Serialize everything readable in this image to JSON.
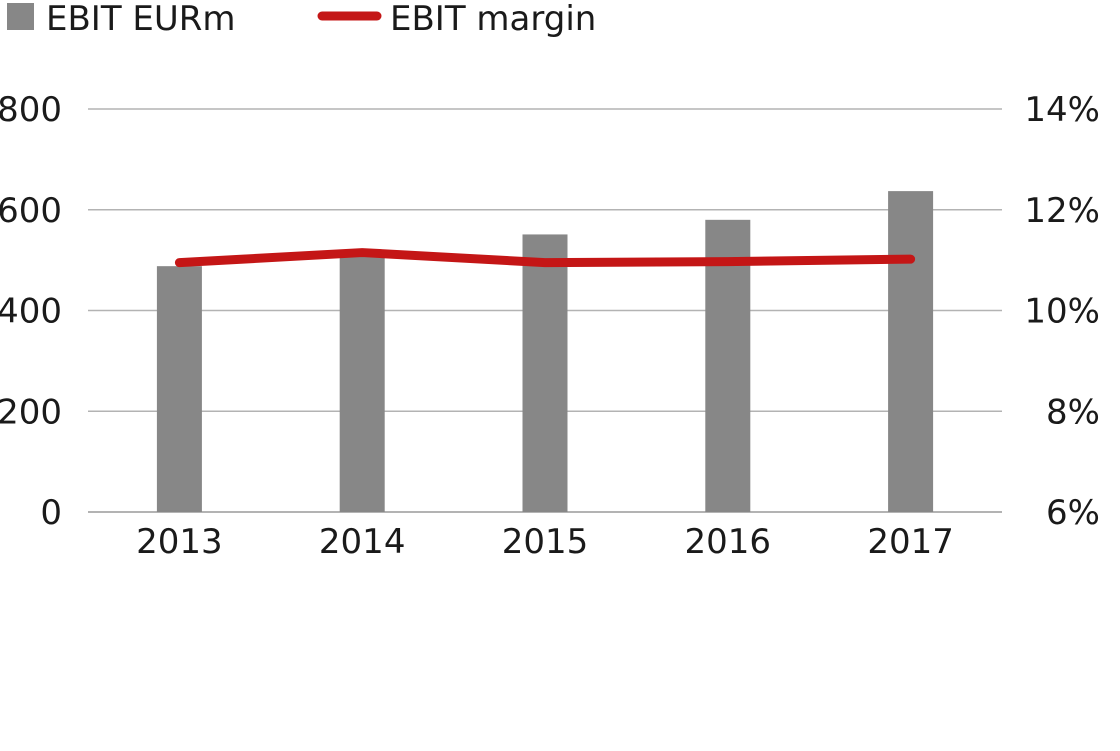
{
  "legend": {
    "bars_label": "EBIT EURm",
    "line_label": "EBIT margin"
  },
  "colors": {
    "bar": "#878787",
    "line": "#c41616",
    "grid": "#b3b3b3"
  },
  "chart_data": {
    "type": "bar",
    "categories": [
      "2013",
      "2014",
      "2015",
      "2016",
      "2017"
    ],
    "series": [
      {
        "name": "EBIT EURm",
        "type": "bar",
        "axis": "left",
        "values": [
          488,
          516,
          551,
          580,
          637
        ]
      },
      {
        "name": "EBIT margin",
        "type": "line",
        "axis": "right",
        "values": [
          10.95,
          11.15,
          10.95,
          10.97,
          11.02
        ]
      }
    ],
    "y_left": {
      "ylim": [
        0,
        800
      ],
      "ticks": [
        0,
        200,
        400,
        600,
        800
      ],
      "tick_labels": [
        "0",
        "200",
        "400",
        "600",
        "800"
      ]
    },
    "y_right": {
      "ylim": [
        6,
        14
      ],
      "ticks": [
        6,
        8,
        10,
        12,
        14
      ],
      "tick_labels": [
        "6%",
        "8%",
        "10%",
        "12%",
        "14%"
      ]
    },
    "grid": true,
    "legend_position": "top-left"
  }
}
